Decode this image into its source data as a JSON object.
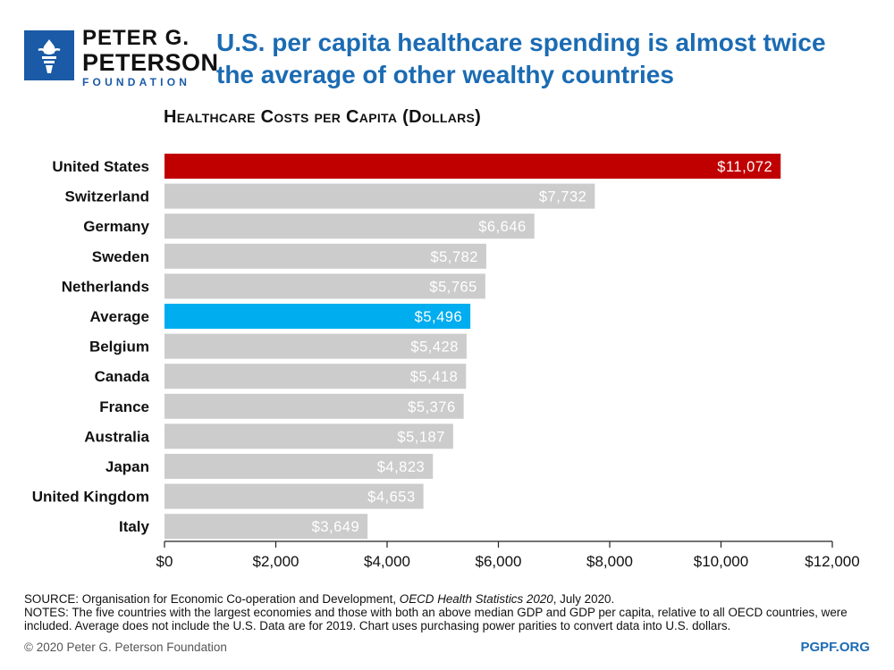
{
  "logo": {
    "line1": "PETER G.",
    "line2": "PETERSON",
    "line3": "FOUNDATION",
    "color": "#1a5aa6"
  },
  "headline": "U.S. per capita healthcare spending is almost twice the average of other wealthy countries",
  "chart_data": {
    "type": "bar",
    "orientation": "horizontal",
    "title": "Healthcare Costs per Capita (Dollars)",
    "categories": [
      "United States",
      "Switzerland",
      "Germany",
      "Sweden",
      "Netherlands",
      "Average",
      "Belgium",
      "Canada",
      "France",
      "Australia",
      "Japan",
      "United Kingdom",
      "Italy"
    ],
    "values": [
      11072,
      7732,
      6646,
      5782,
      5765,
      5496,
      5428,
      5418,
      5376,
      5187,
      4823,
      4653,
      3649
    ],
    "value_labels": [
      "$11,072",
      "$7,732",
      "$6,646",
      "$5,782",
      "$5,765",
      "$5,496",
      "$5,428",
      "$5,418",
      "$5,376",
      "$5,187",
      "$4,823",
      "$4,653",
      "$3,649"
    ],
    "bar_colors": [
      "#c00000",
      "#cccccc",
      "#cccccc",
      "#cccccc",
      "#cccccc",
      "#00adef",
      "#cccccc",
      "#cccccc",
      "#cccccc",
      "#cccccc",
      "#cccccc",
      "#cccccc",
      "#cccccc"
    ],
    "xlim": [
      0,
      12000
    ],
    "xticks": [
      0,
      2000,
      4000,
      6000,
      8000,
      10000,
      12000
    ],
    "xtick_labels": [
      "$0",
      "$2,000",
      "$4,000",
      "$6,000",
      "$8,000",
      "$10,000",
      "$12,000"
    ],
    "xlabel": "",
    "ylabel": "",
    "grid": false,
    "legend": "none"
  },
  "footnotes": {
    "source_prefix": "SOURCE: Organisation for Economic Co-operation and Development, ",
    "source_title": "OECD Health Statistics 2020",
    "source_suffix": ", July 2020.",
    "notes": "NOTES: The five countries with the largest economies and those with both an above median GDP and GDP per capita, relative to all OECD countries, were included. Average does not include the U.S. Data are for 2019. Chart uses purchasing power parities to convert data into U.S. dollars."
  },
  "copyright": "© 2020 Peter G. Peterson Foundation",
  "site": "PGPF.ORG"
}
